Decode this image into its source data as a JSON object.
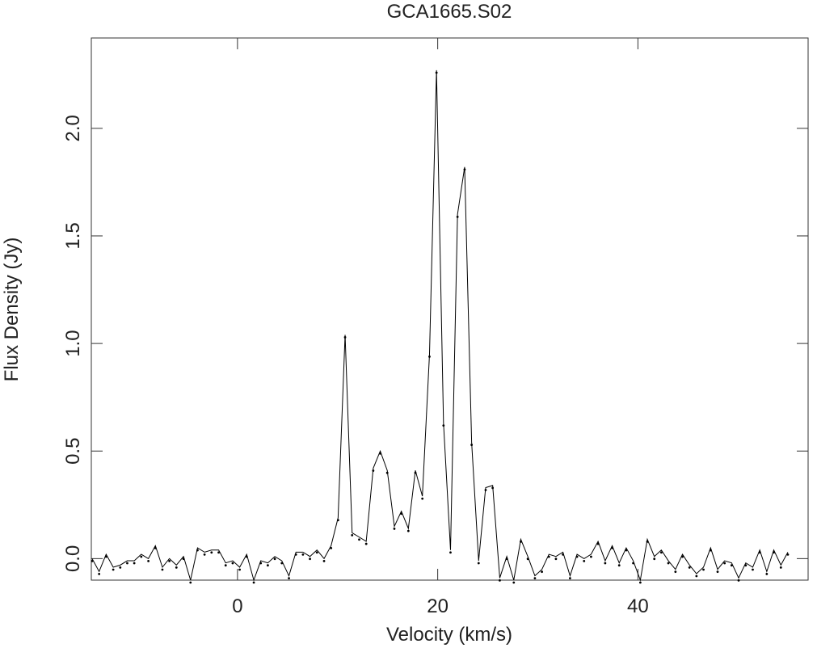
{
  "chart_data": {
    "type": "line",
    "title": "GCA1665.S02",
    "x_label": "Velocity (km/s)",
    "y_label": "Flux Density (Jy)",
    "xlim": [
      -14.6,
      57
    ],
    "ylim": [
      -0.1,
      2.42
    ],
    "xticks": [
      0,
      20,
      40
    ],
    "yticks": [
      {
        "value": 0,
        "label": "0.0"
      },
      0.5,
      {
        "value": 1,
        "label": "1.0"
      },
      1.5,
      {
        "value": 2,
        "label": "2.0"
      }
    ],
    "x": [
      -14.52,
      -13.82,
      -13.12,
      -12.41,
      -11.71,
      -11.01,
      -10.31,
      -9.61,
      -8.9,
      -8.2,
      -7.5,
      -6.8,
      -6.1,
      -5.39,
      -4.69,
      -3.99,
      -3.29,
      -2.59,
      -1.88,
      -1.18,
      -0.48,
      0.22,
      0.92,
      1.63,
      2.33,
      3.03,
      3.73,
      4.43,
      5.14,
      5.84,
      6.54,
      7.24,
      7.94,
      8.65,
      9.35,
      10.05,
      10.75,
      11.45,
      12.16,
      12.86,
      13.56,
      14.26,
      14.96,
      15.67,
      16.37,
      17.07,
      17.77,
      18.47,
      19.18,
      19.88,
      20.58,
      21.28,
      21.98,
      22.69,
      23.39,
      24.09,
      24.79,
      25.49,
      26.2,
      26.9,
      27.6,
      28.3,
      29.0,
      29.71,
      30.41,
      31.11,
      31.81,
      32.51,
      33.22,
      33.92,
      34.62,
      35.32,
      36.02,
      36.73,
      37.43,
      38.13,
      38.83,
      39.53,
      40.24,
      40.94,
      41.64,
      42.34,
      43.04,
      43.75,
      44.45,
      45.15,
      45.85,
      46.55,
      47.26,
      47.96,
      48.66,
      49.36,
      50.06,
      50.77,
      51.47,
      52.17,
      52.87,
      53.57,
      54.28,
      54.98
    ],
    "series": [
      {
        "color": "#000000",
        "values": [
          0.0,
          -0.06,
          0.02,
          -0.04,
          -0.03,
          -0.01,
          -0.01,
          0.02,
          0.0,
          0.06,
          -0.04,
          0.0,
          -0.03,
          0.01,
          -0.1,
          0.05,
          0.03,
          0.04,
          0.04,
          -0.02,
          -0.01,
          -0.04,
          0.02,
          -0.1,
          -0.01,
          -0.02,
          0.01,
          -0.01,
          -0.08,
          0.03,
          0.03,
          0.01,
          0.04,
          0.0,
          0.06,
          0.19,
          1.04,
          0.12,
          0.1,
          0.08,
          0.42,
          0.5,
          0.41,
          0.15,
          0.22,
          0.14,
          0.41,
          0.29,
          0.95,
          2.27,
          0.63,
          0.04,
          1.6,
          1.82,
          0.54,
          -0.01,
          0.33,
          0.34,
          -0.09,
          0.01,
          -0.1,
          0.09,
          0.01,
          -0.08,
          -0.05,
          0.02,
          0.01,
          0.03,
          -0.08,
          0.02,
          0.0,
          0.02,
          0.08,
          -0.01,
          0.06,
          -0.02,
          0.05,
          -0.01,
          -0.1,
          0.09,
          0.01,
          0.04,
          -0.01,
          -0.05,
          0.02,
          -0.03,
          -0.07,
          -0.04,
          0.05,
          -0.05,
          -0.01,
          -0.02,
          -0.09,
          -0.02,
          -0.04,
          0.04,
          -0.06,
          0.04,
          -0.03,
          0.03
        ]
      }
    ]
  }
}
